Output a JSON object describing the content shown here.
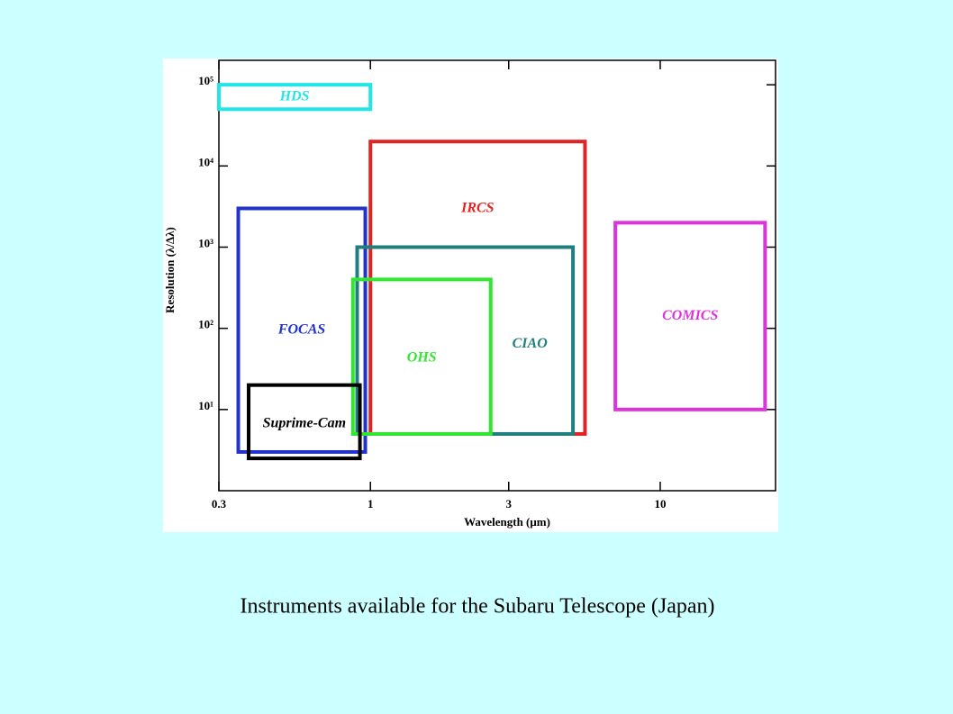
{
  "chart_data": {
    "type": "rect",
    "x_label": "Wavelength (μm)",
    "y_label": "Resolution (λ/Δλ)",
    "log_x": true,
    "log_y": true,
    "xlim": [
      0.3,
      25
    ],
    "ylim": [
      1,
      200000
    ],
    "xticks": [
      0.3,
      1,
      3,
      10
    ],
    "yticks": [
      {
        "value": 10,
        "label": "10¹"
      },
      {
        "value": 100,
        "label": "10²"
      },
      {
        "value": 1000,
        "label": "10³"
      },
      {
        "value": 10000,
        "label": "10⁴"
      },
      {
        "value": 100000,
        "label": "10⁵"
      }
    ],
    "series": [
      {
        "name": "HDS",
        "color": "#22e5e5",
        "x": [
          0.3,
          1
        ],
        "y": [
          50000,
          100000
        ]
      },
      {
        "name": "IRCS",
        "color": "#e52222",
        "x": [
          1,
          5.5
        ],
        "y": [
          5,
          20000
        ]
      },
      {
        "name": "FOCAS",
        "color": "#2233cc",
        "x": [
          0.35,
          0.96
        ],
        "y": [
          3,
          3000
        ]
      },
      {
        "name": "CIAO",
        "color": "#1f7f7f",
        "x": [
          0.9,
          5
        ],
        "y": [
          5,
          1000
        ]
      },
      {
        "name": "OHS",
        "color": "#33e533",
        "x": [
          0.87,
          2.6
        ],
        "y": [
          5,
          400
        ]
      },
      {
        "name": "COMICS",
        "color": "#dd33dd",
        "x": [
          7,
          23
        ],
        "y": [
          10,
          2000
        ]
      },
      {
        "name": "Suprime-Cam",
        "color": "#000000",
        "x": [
          0.38,
          0.92
        ],
        "y": [
          2.5,
          20
        ]
      }
    ]
  },
  "caption": "Instruments available for the Subaru Telescope (Japan)"
}
